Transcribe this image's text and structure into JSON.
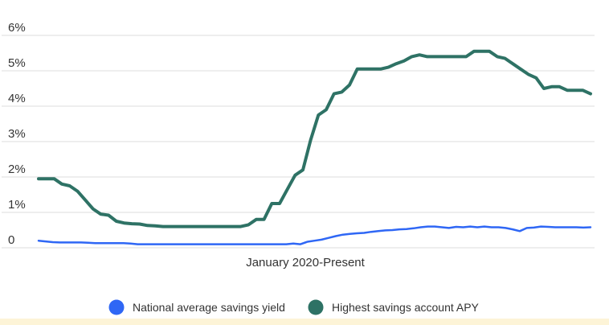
{
  "chart_data": {
    "type": "line",
    "title": "",
    "xlabel": "January 2020-Present",
    "ylabel": "",
    "ylim": [
      0,
      6
    ],
    "yticks": [
      0,
      1,
      2,
      3,
      4,
      5,
      6
    ],
    "ytick_labels": [
      "0",
      "1%",
      "2%",
      "3%",
      "4%",
      "5%",
      "6%"
    ],
    "grid": true,
    "legend_position": "bottom",
    "series": [
      {
        "name": "National average savings yield",
        "color": "#2f67f5",
        "values": [
          0.2,
          0.18,
          0.16,
          0.15,
          0.15,
          0.15,
          0.15,
          0.14,
          0.13,
          0.13,
          0.13,
          0.13,
          0.13,
          0.12,
          0.1,
          0.1,
          0.1,
          0.1,
          0.1,
          0.1,
          0.1,
          0.1,
          0.1,
          0.1,
          0.1,
          0.1,
          0.1,
          0.1,
          0.1,
          0.1,
          0.1,
          0.1,
          0.1,
          0.1,
          0.1,
          0.1,
          0.12,
          0.1,
          0.17,
          0.2,
          0.23,
          0.28,
          0.33,
          0.37,
          0.39,
          0.41,
          0.42,
          0.45,
          0.47,
          0.49,
          0.5,
          0.52,
          0.53,
          0.55,
          0.58,
          0.6,
          0.6,
          0.58,
          0.56,
          0.59,
          0.58,
          0.6,
          0.58,
          0.6,
          0.58,
          0.58,
          0.56,
          0.52,
          0.47,
          0.56,
          0.57,
          0.6,
          0.59,
          0.58,
          0.58,
          0.58,
          0.58,
          0.57,
          0.58
        ]
      },
      {
        "name": "Highest savings account APY",
        "color": "#2e7265",
        "values": [
          1.95,
          1.95,
          1.95,
          1.8,
          1.75,
          1.6,
          1.35,
          1.1,
          0.95,
          0.92,
          0.75,
          0.7,
          0.68,
          0.67,
          0.63,
          0.62,
          0.6,
          0.6,
          0.6,
          0.6,
          0.6,
          0.6,
          0.6,
          0.6,
          0.6,
          0.6,
          0.6,
          0.65,
          0.8,
          0.8,
          1.25,
          1.25,
          1.65,
          2.05,
          2.2,
          3.05,
          3.75,
          3.9,
          4.35,
          4.4,
          4.6,
          5.05,
          5.05,
          5.05,
          5.05,
          5.1,
          5.2,
          5.28,
          5.4,
          5.45,
          5.4,
          5.4,
          5.4,
          5.4,
          5.4,
          5.4,
          5.55,
          5.55,
          5.55,
          5.4,
          5.35,
          5.2,
          5.05,
          4.9,
          4.8,
          4.5,
          4.55,
          4.55,
          4.45,
          4.45,
          4.45,
          4.35
        ]
      }
    ]
  }
}
